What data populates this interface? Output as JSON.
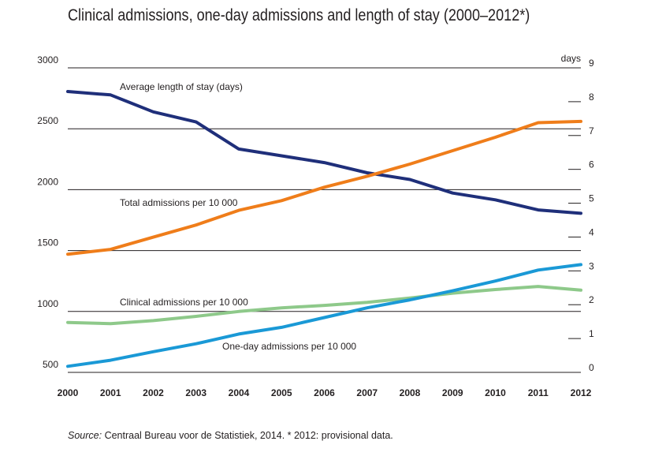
{
  "title": "Clinical admissions, one-day admissions and length of stay (2000–2012*)",
  "source": {
    "label": "Source:",
    "text": " Centraal Bureau voor de Statistiek, 2014. * 2012: provisional data."
  },
  "chart_data": {
    "type": "line",
    "title": "Clinical admissions, one-day admissions and length of stay (2000–2012*)",
    "x": [
      "2000",
      "2001",
      "2002",
      "2003",
      "2004",
      "2005",
      "2006",
      "2007",
      "2008",
      "2009",
      "2010",
      "2011",
      "2012"
    ],
    "y_left": {
      "ticks": [
        500,
        1000,
        1500,
        2000,
        2500,
        3000
      ],
      "ylim": [
        500,
        3000
      ]
    },
    "y_right": {
      "label": "days",
      "ticks": [
        0,
        1,
        2,
        3,
        4,
        5,
        6,
        7,
        8,
        9
      ],
      "ylim": [
        0,
        9
      ]
    },
    "grid": "horizontal",
    "series": [
      {
        "name": "Average length of stay (days)",
        "axis": "right",
        "color": "#1f2f7a",
        "values": [
          8.3,
          8.2,
          7.7,
          7.4,
          6.6,
          6.4,
          6.2,
          5.9,
          5.7,
          5.3,
          5.1,
          4.8,
          4.7
        ]
      },
      {
        "name": "Total admissions per 10 000",
        "axis": "left",
        "color": "#ef7d1a",
        "values": [
          1470,
          1510,
          1610,
          1710,
          1830,
          1910,
          2020,
          2110,
          2210,
          2320,
          2430,
          2550,
          2560
        ]
      },
      {
        "name": "Clinical admissions per 10 000",
        "axis": "left",
        "color": "#8ec98a",
        "values": [
          910,
          900,
          925,
          960,
          1000,
          1030,
          1050,
          1075,
          1110,
          1150,
          1180,
          1205,
          1175
        ]
      },
      {
        "name": "One-day admissions per 10 000",
        "axis": "left",
        "color": "#1a99d6",
        "values": [
          550,
          600,
          670,
          735,
          815,
          870,
          950,
          1030,
          1095,
          1170,
          1250,
          1340,
          1385
        ]
      }
    ]
  }
}
